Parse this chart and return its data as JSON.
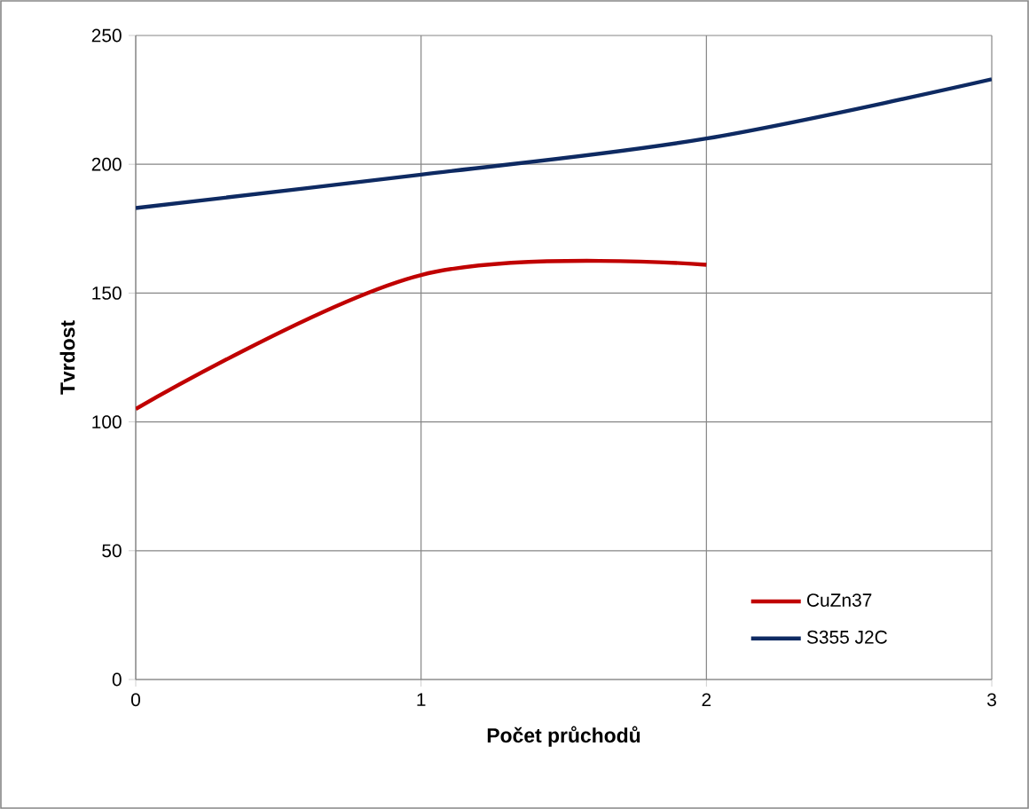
{
  "chart_data": {
    "type": "line",
    "xlabel": "Počet průchodů",
    "ylabel": "Tvrdost",
    "x": [
      0,
      1,
      2,
      3
    ],
    "series": [
      {
        "name": "CuZn37",
        "color": "#c00000",
        "values": [
          105,
          157,
          161,
          null
        ]
      },
      {
        "name": "S355 J2C",
        "color": "#0e2a62",
        "values": [
          183,
          196,
          210,
          233
        ]
      }
    ],
    "xlim": [
      0,
      3
    ],
    "ylim": [
      0,
      250
    ],
    "xticks": [
      0,
      1,
      2,
      3
    ],
    "yticks": [
      0,
      50,
      100,
      150,
      200,
      250
    ],
    "grid": true,
    "legend": "bottom right",
    "marker": "none",
    "line_style": "solid"
  }
}
